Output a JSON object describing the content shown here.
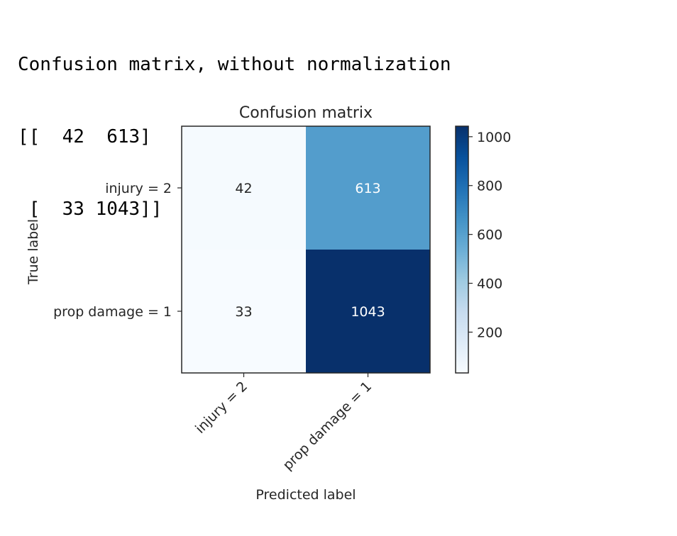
{
  "console_output": {
    "header": "Confusion matrix, without normalization",
    "row_1": "[[  42  613]",
    "row_2": " [  33 1043]]"
  },
  "chart_data": {
    "type": "heatmap",
    "title": "Confusion matrix",
    "xlabel": "Predicted label",
    "ylabel": "True label",
    "x_categories": [
      "injury = 2",
      "prop damage = 1"
    ],
    "y_categories": [
      "injury = 2",
      "prop damage = 1"
    ],
    "matrix": [
      [
        42,
        613
      ],
      [
        33,
        1043
      ]
    ],
    "colormap": "Blues",
    "color_range": [
      33,
      1043
    ],
    "colorbar_ticks": [
      200,
      400,
      600,
      800,
      1000
    ],
    "colors": {
      "low": "#f5f9fe",
      "high": "#1c3667",
      "text_dark": "#262626",
      "text_light": "#ffffff"
    }
  }
}
